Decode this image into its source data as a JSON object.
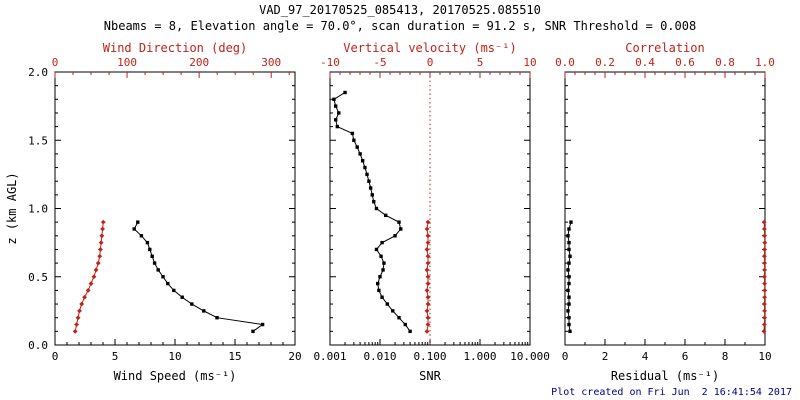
{
  "header": {
    "title": "VAD_97_20170525_085413, 20170525.085510",
    "subtitle": "Nbeams = 8, Elevation angle = 70.0°, scan duration = 91.2 s, SNR Threshold = 0.008"
  },
  "footer": {
    "created": "Plot created on Fri Jun  2 16:41:54 2017"
  },
  "colors": {
    "black": "#000000",
    "axis_red": "#c22218",
    "footer_blue": "#00008b",
    "background": "#ffffff"
  },
  "chart_data": [
    {
      "type": "line",
      "name": "wind-panel",
      "ylabel": "z (km AGL)",
      "ylim": [
        0,
        2.0
      ],
      "yticks": [
        0,
        0.5,
        1.0,
        1.5,
        2.0
      ],
      "ytick_labels": [
        "0.0",
        "0.5",
        "1.0",
        "1.5",
        "2.0"
      ],
      "show_ytick_labels": true,
      "bottom_axis": {
        "label": "Wind Speed (ms⁻¹)",
        "color": "black",
        "scale": "linear",
        "lim": [
          0,
          20
        ],
        "ticks": [
          0,
          5,
          10,
          15,
          20
        ],
        "tick_labels": [
          "0",
          "5",
          "10",
          "15",
          "20"
        ],
        "minor_step": 1
      },
      "top_axis": {
        "label": "Wind Direction (deg)",
        "color": "red",
        "scale": "linear",
        "lim": [
          0,
          333
        ],
        "ticks": [
          0,
          100,
          200,
          300
        ],
        "tick_labels": [
          "0",
          "100",
          "200",
          "300"
        ],
        "minor_step": 25
      },
      "series": [
        {
          "name": "wind-speed",
          "axis": "bottom",
          "color": "black",
          "marker": "square",
          "z": [
            0.1,
            0.15,
            0.2,
            0.25,
            0.3,
            0.35,
            0.4,
            0.45,
            0.5,
            0.55,
            0.6,
            0.65,
            0.7,
            0.75,
            0.8,
            0.85,
            0.9
          ],
          "values": [
            16.5,
            17.3,
            13.5,
            12.4,
            11.4,
            10.6,
            9.9,
            9.4,
            9.0,
            8.6,
            8.3,
            8.1,
            7.9,
            7.7,
            7.2,
            6.6,
            6.9
          ]
        },
        {
          "name": "wind-direction",
          "axis": "top",
          "color": "red",
          "marker": "diamond",
          "z": [
            0.1,
            0.15,
            0.2,
            0.25,
            0.3,
            0.35,
            0.4,
            0.45,
            0.5,
            0.55,
            0.6,
            0.65,
            0.7,
            0.75,
            0.8,
            0.85,
            0.9
          ],
          "values": [
            28,
            30,
            32,
            34,
            37,
            41,
            46,
            50,
            54,
            57,
            60,
            62,
            63,
            64,
            65,
            66,
            67
          ]
        }
      ]
    },
    {
      "type": "line",
      "name": "snr-panel",
      "ylabel": "",
      "ylim": [
        0,
        2.0
      ],
      "yticks": [
        0,
        0.5,
        1.0,
        1.5,
        2.0
      ],
      "ytick_labels": [
        "0.0",
        "0.5",
        "1.0",
        "1.5",
        "2.0"
      ],
      "show_ytick_labels": false,
      "bottom_axis": {
        "label": "SNR",
        "color": "black",
        "scale": "log",
        "lim": [
          0.001,
          10.0
        ],
        "ticks": [
          0.001,
          0.01,
          0.1,
          1.0,
          10.0
        ],
        "tick_labels": [
          "0.001",
          "0.010",
          "0.100",
          "1.000",
          "10.000"
        ]
      },
      "top_axis": {
        "label": "Vertical velocity (ms⁻¹)",
        "color": "red",
        "scale": "linear",
        "lim": [
          -10,
          10
        ],
        "ticks": [
          -10,
          -5,
          0,
          5,
          10
        ],
        "tick_labels": [
          "-10",
          "-5",
          "0",
          "5",
          "10"
        ],
        "minor_step": 1
      },
      "refline": {
        "axis": "top",
        "value": 0,
        "style": "dotted",
        "color": "red"
      },
      "series": [
        {
          "name": "snr",
          "axis": "bottom",
          "color": "black",
          "marker": "square",
          "z": [
            0.1,
            0.15,
            0.2,
            0.25,
            0.3,
            0.35,
            0.4,
            0.45,
            0.5,
            0.55,
            0.6,
            0.65,
            0.7,
            0.75,
            0.8,
            0.85,
            0.9,
            0.95,
            1.0,
            1.05,
            1.1,
            1.15,
            1.2,
            1.25,
            1.3,
            1.35,
            1.4,
            1.45,
            1.5,
            1.55,
            1.6,
            1.65,
            1.7,
            1.75,
            1.8,
            1.85
          ],
          "values": [
            0.04,
            0.032,
            0.024,
            0.018,
            0.014,
            0.011,
            0.0095,
            0.009,
            0.01,
            0.0115,
            0.012,
            0.0105,
            0.0085,
            0.011,
            0.02,
            0.026,
            0.024,
            0.013,
            0.0085,
            0.0075,
            0.007,
            0.0065,
            0.006,
            0.0055,
            0.005,
            0.0045,
            0.004,
            0.0035,
            0.003,
            0.0028,
            0.0014,
            0.0013,
            0.0015,
            0.0013,
            0.0012,
            0.002
          ]
        },
        {
          "name": "vertical-velocity",
          "axis": "top",
          "color": "red",
          "marker": "diamond",
          "z": [
            0.1,
            0.15,
            0.2,
            0.25,
            0.3,
            0.35,
            0.4,
            0.45,
            0.5,
            0.55,
            0.6,
            0.65,
            0.7,
            0.75,
            0.8,
            0.85,
            0.9
          ],
          "values": [
            -0.3,
            -0.2,
            -0.2,
            -0.3,
            -0.2,
            -0.2,
            -0.3,
            -0.2,
            -0.2,
            -0.3,
            -0.2,
            -0.2,
            -0.3,
            -0.2,
            -0.2,
            -0.3,
            -0.2
          ]
        }
      ]
    },
    {
      "type": "line",
      "name": "residual-panel",
      "ylabel": "",
      "ylim": [
        0,
        2.0
      ],
      "yticks": [
        0,
        0.5,
        1.0,
        1.5,
        2.0
      ],
      "ytick_labels": [
        "0.0",
        "0.5",
        "1.0",
        "1.5",
        "2.0"
      ],
      "show_ytick_labels": false,
      "bottom_axis": {
        "label": "Residual (ms⁻¹)",
        "color": "black",
        "scale": "linear",
        "lim": [
          0,
          10
        ],
        "ticks": [
          0,
          2,
          4,
          6,
          8,
          10
        ],
        "tick_labels": [
          "0",
          "2",
          "4",
          "6",
          "8",
          "10"
        ],
        "minor_step": 1
      },
      "top_axis": {
        "label": "Correlation",
        "color": "red",
        "scale": "linear",
        "lim": [
          0,
          1.0
        ],
        "ticks": [
          0,
          0.2,
          0.4,
          0.6,
          0.8,
          1.0
        ],
        "tick_labels": [
          "0.0",
          "0.2",
          "0.4",
          "0.6",
          "0.8",
          "1.0"
        ],
        "minor_step": 0.05
      },
      "series": [
        {
          "name": "residual",
          "axis": "bottom",
          "color": "black",
          "marker": "square",
          "z": [
            0.1,
            0.15,
            0.2,
            0.25,
            0.3,
            0.35,
            0.4,
            0.45,
            0.5,
            0.55,
            0.6,
            0.65,
            0.7,
            0.75,
            0.8,
            0.85,
            0.9
          ],
          "values": [
            0.25,
            0.2,
            0.2,
            0.15,
            0.2,
            0.2,
            0.15,
            0.2,
            0.2,
            0.15,
            0.2,
            0.25,
            0.2,
            0.2,
            0.15,
            0.2,
            0.3
          ]
        },
        {
          "name": "correlation",
          "axis": "top",
          "color": "red",
          "marker": "diamond",
          "z": [
            0.1,
            0.15,
            0.2,
            0.25,
            0.3,
            0.35,
            0.4,
            0.45,
            0.5,
            0.55,
            0.6,
            0.65,
            0.7,
            0.75,
            0.8,
            0.85,
            0.9
          ],
          "values": [
            0.995,
            0.997,
            0.998,
            0.998,
            0.997,
            0.998,
            0.999,
            0.998,
            0.997,
            0.998,
            0.998,
            0.997,
            0.998,
            0.999,
            0.998,
            0.997,
            0.996
          ]
        }
      ]
    }
  ]
}
